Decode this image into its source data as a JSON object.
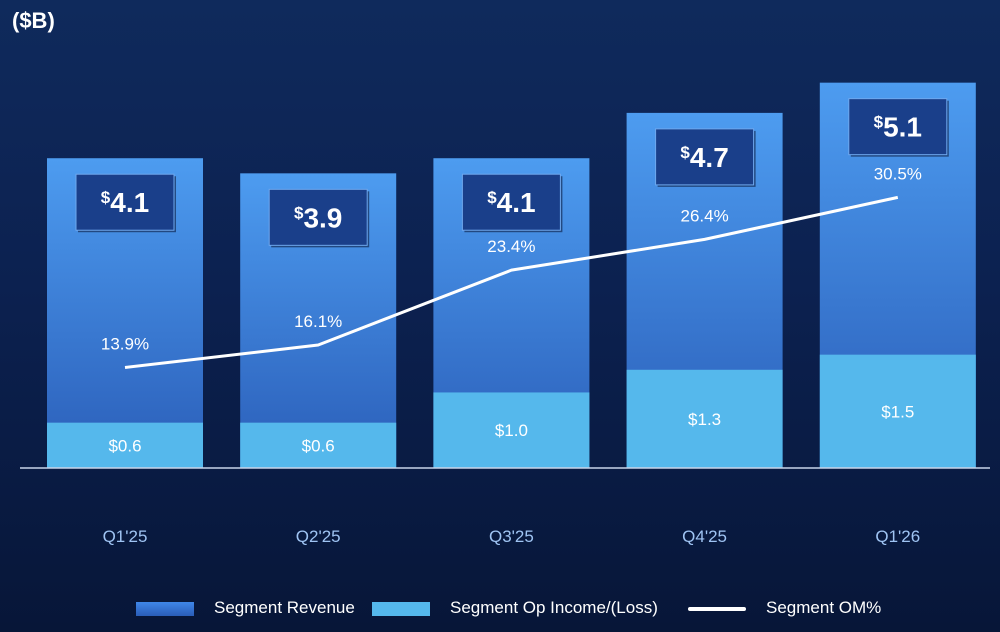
{
  "chart_data": {
    "type": "bar",
    "unit_label": "($B)",
    "categories": [
      "Q1'25",
      "Q2'25",
      "Q3'25",
      "Q4'25",
      "Q1'26"
    ],
    "series": [
      {
        "name": "Segment Revenue",
        "values": [
          4.1,
          3.9,
          4.1,
          4.7,
          5.1
        ],
        "labels": [
          "4.1",
          "3.9",
          "4.1",
          "4.7",
          "5.1"
        ],
        "currency": "$",
        "color": "#3f7ee0"
      },
      {
        "name": "Segment Op Income/(Loss)",
        "values": [
          0.6,
          0.6,
          1.0,
          1.3,
          1.5
        ],
        "labels": [
          "$0.6",
          "$0.6",
          "$1.0",
          "$1.3",
          "$1.5"
        ],
        "color": "#55b8ec"
      },
      {
        "name": "Segment OM%",
        "type": "line",
        "values": [
          13.9,
          16.1,
          23.4,
          26.4,
          30.5
        ],
        "labels": [
          "13.9%",
          "16.1%",
          "23.4%",
          "26.4%",
          "30.5%"
        ],
        "color": "#ffffff"
      }
    ],
    "ylim": [
      0,
      5.4
    ],
    "om_range": [
      0,
      40
    ],
    "colors": {
      "revenue_top": "#4d9cf0",
      "revenue_bottom": "#2a5db8",
      "income": "#55b8ec",
      "callout": "#1a3f8a",
      "axis": "#c8d4ea",
      "tick": "#9fc4f3"
    }
  }
}
